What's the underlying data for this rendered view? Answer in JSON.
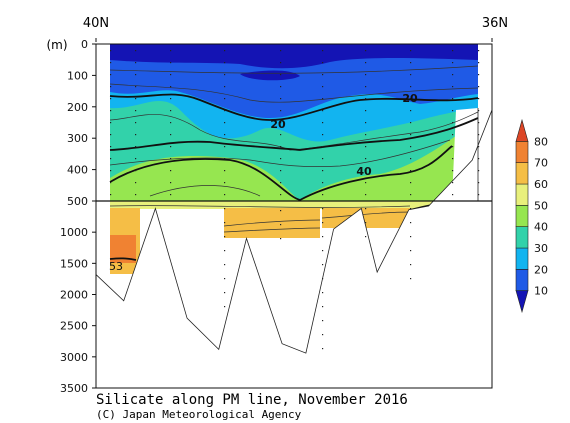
{
  "chart_data": {
    "type": "heatmap",
    "title": "Silicate along PM line, November 2016",
    "credit": "(C) Japan Meteorological Agency",
    "x_start_label": "40N",
    "x_end_label": "36N",
    "y_unit_label": "(m)",
    "y_ticks": [
      "0",
      "100",
      "200",
      "300",
      "400",
      "500",
      "1000",
      "1500",
      "2000",
      "2500",
      "3000",
      "3500"
    ],
    "upper_range_m": [
      0,
      500
    ],
    "lower_range_m": [
      500,
      3500
    ],
    "colorbar": {
      "levels": [
        "10",
        "20",
        "30",
        "40",
        "50",
        "60",
        "70",
        "80"
      ],
      "bins": [
        {
          "min": null,
          "max": 10,
          "color": "#1414b4"
        },
        {
          "min": 10,
          "max": 20,
          "color": "#1f5ae6"
        },
        {
          "min": 20,
          "max": 30,
          "color": "#12b4f0"
        },
        {
          "min": 30,
          "max": 40,
          "color": "#32d2aa"
        },
        {
          "min": 40,
          "max": 50,
          "color": "#96e650"
        },
        {
          "min": 50,
          "max": 60,
          "color": "#e8f07c"
        },
        {
          "min": 60,
          "max": 70,
          "color": "#f5be46"
        },
        {
          "min": 70,
          "max": 80,
          "color": "#f08232"
        },
        {
          "min": 80,
          "max": null,
          "color": "#dc4626"
        }
      ]
    },
    "contour_labels": [
      {
        "text": "20",
        "value": 20,
        "depth_m": 180
      },
      {
        "text": "20",
        "value": 20,
        "depth_m": 270
      },
      {
        "text": "40",
        "value": 40,
        "depth_m": 420
      },
      {
        "text": "53",
        "value": 53,
        "depth_m": 1680
      }
    ],
    "bottom_profile": [
      {
        "x": 0.0,
        "depth_m": 1680
      },
      {
        "x": 0.07,
        "depth_m": 2100
      },
      {
        "x": 0.15,
        "depth_m": 620
      },
      {
        "x": 0.23,
        "depth_m": 2380
      },
      {
        "x": 0.31,
        "depth_m": 2880
      },
      {
        "x": 0.38,
        "depth_m": 1100
      },
      {
        "x": 0.47,
        "depth_m": 2790
      },
      {
        "x": 0.53,
        "depth_m": 2940
      },
      {
        "x": 0.6,
        "depth_m": 950
      },
      {
        "x": 0.67,
        "depth_m": 620
      },
      {
        "x": 0.71,
        "depth_m": 1640
      },
      {
        "x": 0.79,
        "depth_m": 640
      },
      {
        "x": 0.84,
        "depth_m": 580
      },
      {
        "x": 0.95,
        "depth_m": 370
      },
      {
        "x": 1.0,
        "depth_m": 210
      }
    ]
  }
}
